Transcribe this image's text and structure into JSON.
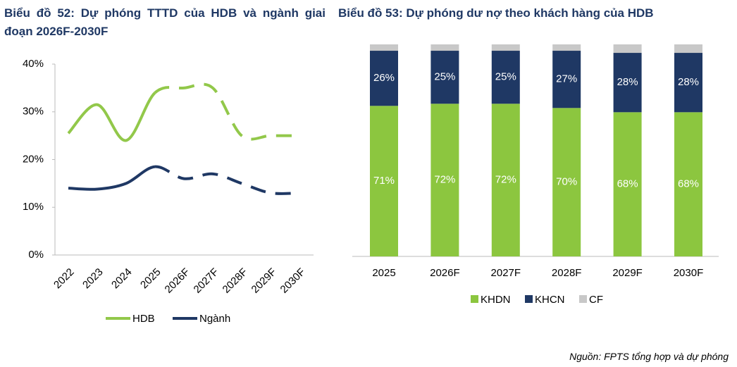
{
  "charts": [
    {
      "type": "line",
      "title": "Biểu đồ 52: Dự phóng TTTD của HDB và ngành giai đoạn 2026F-2030F",
      "categories": [
        "2022",
        "2023",
        "2024",
        "2025",
        "2026F",
        "2027F",
        "2028F",
        "2029F",
        "2030F"
      ],
      "series": [
        {
          "name": "HDB",
          "color": "#92c84a",
          "values": [
            25.5,
            31.5,
            24,
            34,
            35,
            35,
            25,
            25,
            25
          ]
        },
        {
          "name": "Ngành",
          "color": "#1f3864",
          "values": [
            14,
            13.8,
            15,
            18.5,
            16,
            17,
            15,
            13,
            13
          ]
        }
      ],
      "dashed_from": "2025",
      "ylim": [
        0,
        40
      ],
      "yticks": [
        {
          "value": 0,
          "label": "0%"
        },
        {
          "value": 10,
          "label": "10%"
        },
        {
          "value": 20,
          "label": "20%"
        },
        {
          "value": 30,
          "label": "30%"
        },
        {
          "value": 40,
          "label": "40%"
        }
      ],
      "legend": "bottom"
    },
    {
      "type": "stacked_bar",
      "title": "Biểu đồ 53: Dự phóng dư nợ theo khách hàng của HDB",
      "categories": [
        "2025",
        "2026F",
        "2027F",
        "2028F",
        "2029F",
        "2030F"
      ],
      "series": [
        {
          "name": "KHDN",
          "color": "#8cc63f",
          "values": [
            71,
            72,
            72,
            70,
            68,
            68
          ],
          "value_labels": [
            "71%",
            "72%",
            "72%",
            "70%",
            "68%",
            "68%"
          ]
        },
        {
          "name": "KHCN",
          "color": "#1f3864",
          "values": [
            26,
            25,
            25,
            27,
            28,
            28
          ],
          "value_labels": [
            "26%",
            "25%",
            "25%",
            "27%",
            "28%",
            "28%"
          ]
        },
        {
          "name": "CF",
          "color": "#c8c8c8",
          "values": [
            3,
            3,
            3,
            3,
            4,
            4
          ]
        }
      ],
      "ylim": [
        0,
        100
      ],
      "legend": "bottom"
    }
  ],
  "source": "Nguồn: FPTS tổng hợp và dự phóng"
}
